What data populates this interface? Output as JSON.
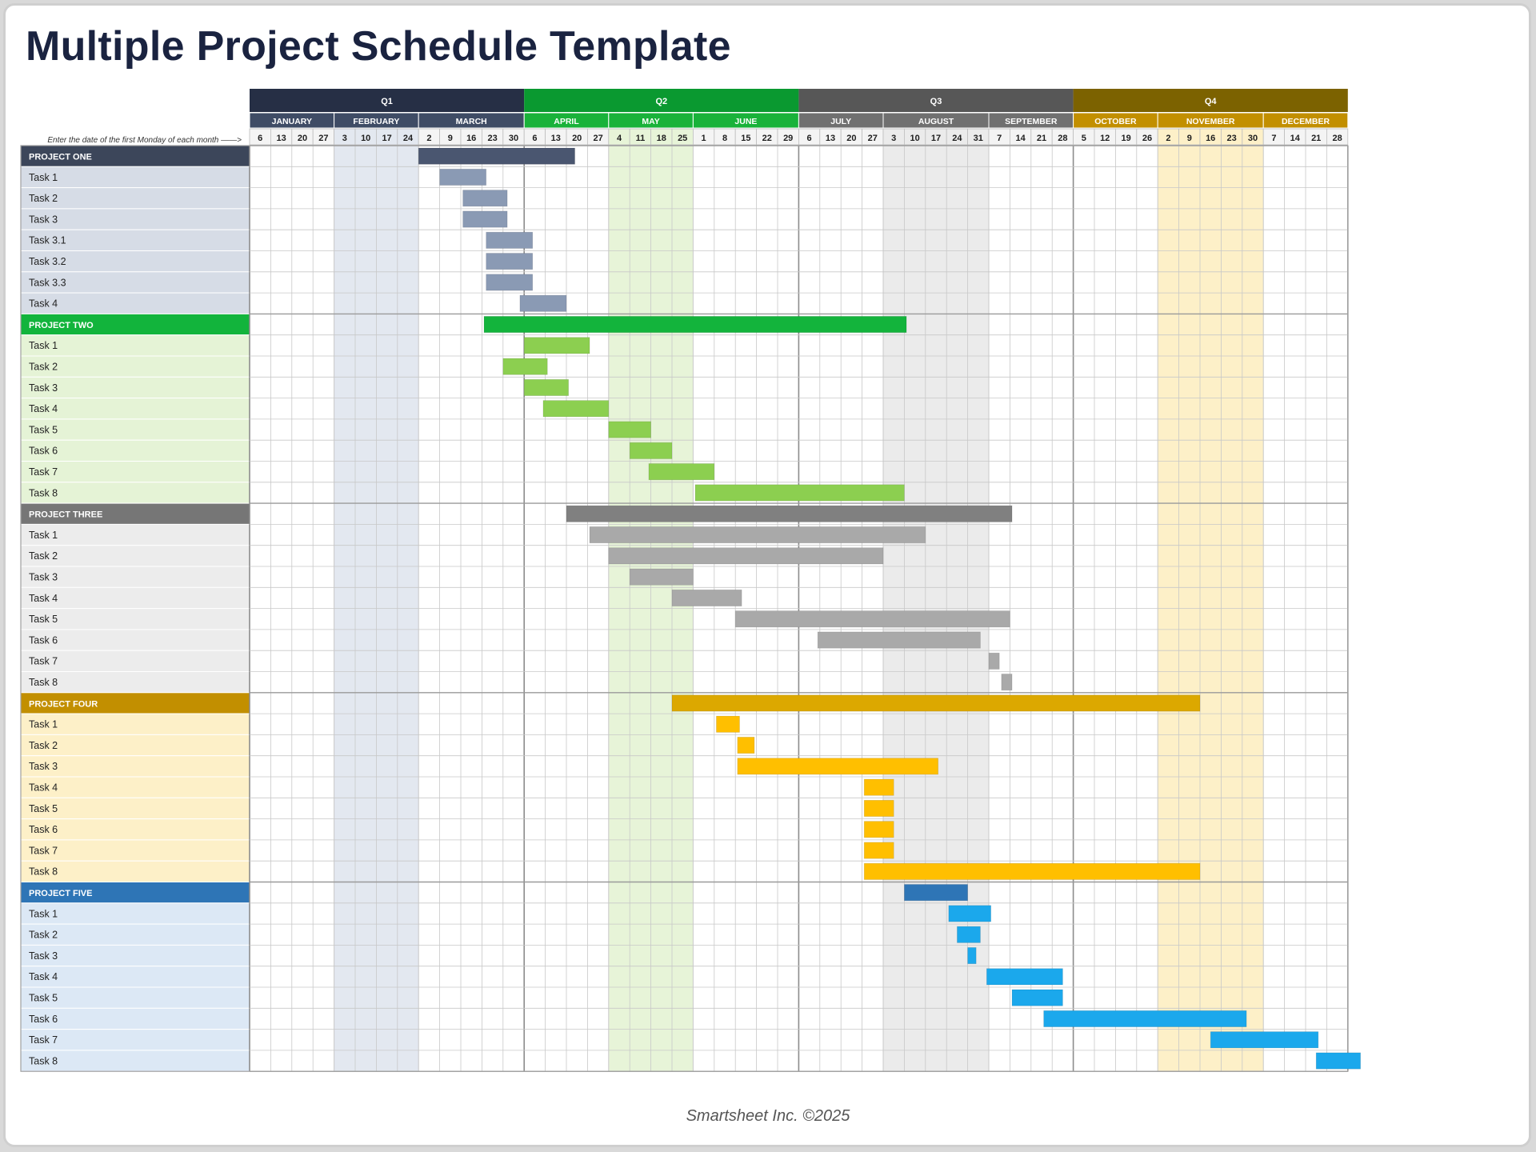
{
  "title": "Multiple Project Schedule Template",
  "instruction": "Enter the date of the first Monday of each month ——>",
  "footer": "Smartsheet Inc. ©2025",
  "quarters": [
    {
      "label": "Q1",
      "dark": "#262f45",
      "mid": "#3f4c65",
      "light": "#e3e8f0"
    },
    {
      "label": "Q2",
      "dark": "#0a9930",
      "mid": "#19b23a",
      "light": "#e7f4d8"
    },
    {
      "label": "Q3",
      "dark": "#575757",
      "mid": "#707070",
      "light": "#ebebeb"
    },
    {
      "label": "Q4",
      "dark": "#7c6200",
      "mid": "#c28f00",
      "light": "#fdf0c8"
    }
  ],
  "months": [
    {
      "name": "JANUARY",
      "weeks": [
        "6",
        "13",
        "20",
        "27"
      ]
    },
    {
      "name": "FEBRUARY",
      "weeks": [
        "3",
        "10",
        "17",
        "24"
      ]
    },
    {
      "name": "MARCH",
      "weeks": [
        "2",
        "9",
        "16",
        "23",
        "30"
      ]
    },
    {
      "name": "APRIL",
      "weeks": [
        "6",
        "13",
        "20",
        "27"
      ]
    },
    {
      "name": "MAY",
      "weeks": [
        "4",
        "11",
        "18",
        "25"
      ]
    },
    {
      "name": "JUNE",
      "weeks": [
        "1",
        "8",
        "15",
        "22",
        "29"
      ]
    },
    {
      "name": "JULY",
      "weeks": [
        "6",
        "13",
        "20",
        "27"
      ]
    },
    {
      "name": "AUGUST",
      "weeks": [
        "3",
        "10",
        "17",
        "24",
        "31"
      ]
    },
    {
      "name": "SEPTEMBER",
      "weeks": [
        "7",
        "14",
        "21",
        "28"
      ]
    },
    {
      "name": "OCTOBER",
      "weeks": [
        "5",
        "12",
        "19",
        "26"
      ]
    },
    {
      "name": "NOVEMBER",
      "weeks": [
        "2",
        "9",
        "16",
        "23",
        "30"
      ]
    },
    {
      "name": "DECEMBER",
      "weeks": [
        "7",
        "14",
        "21",
        "28"
      ]
    }
  ],
  "projects": [
    {
      "name": "PROJECT ONE",
      "header_color": "#3c465a",
      "label_bg": "#d6dce6",
      "bar_color": "#4a5670",
      "task_bar_color": "#8a9ab4",
      "summary_weeks": [
        8,
        15.4
      ],
      "tasks": [
        {
          "name": "Task 1",
          "weeks": [
            9,
            11.2
          ]
        },
        {
          "name": "Task 2",
          "weeks": [
            10.1,
            12.2
          ]
        },
        {
          "name": "Task 3",
          "weeks": [
            10.1,
            12.2
          ]
        },
        {
          "name": "Task 3.1",
          "weeks": [
            11.2,
            13.4
          ]
        },
        {
          "name": "Task 3.2",
          "weeks": [
            11.2,
            13.4
          ]
        },
        {
          "name": "Task 3.3",
          "weeks": [
            11.2,
            13.4
          ]
        },
        {
          "name": "Task 4",
          "weeks": [
            12.8,
            15
          ]
        }
      ]
    },
    {
      "name": "PROJECT TWO",
      "header_color": "#12b43c",
      "label_bg": "#e5f3d6",
      "bar_color": "#13b43c",
      "task_bar_color": "#8ccf50",
      "summary_weeks": [
        11.1,
        31.1
      ],
      "tasks": [
        {
          "name": "Task 1",
          "weeks": [
            13,
            16.1
          ]
        },
        {
          "name": "Task 2",
          "weeks": [
            12,
            14.1
          ]
        },
        {
          "name": "Task 3",
          "weeks": [
            13,
            15.1
          ]
        },
        {
          "name": "Task 4",
          "weeks": [
            13.9,
            17
          ]
        },
        {
          "name": "Task 5",
          "weeks": [
            17,
            19
          ]
        },
        {
          "name": "Task 6",
          "weeks": [
            18,
            20
          ]
        },
        {
          "name": "Task 7",
          "weeks": [
            18.9,
            22
          ]
        },
        {
          "name": "Task 8",
          "weeks": [
            21.1,
            31
          ]
        }
      ]
    },
    {
      "name": "PROJECT THREE",
      "header_color": "#767676",
      "label_bg": "#ececec",
      "bar_color": "#808080",
      "task_bar_color": "#a9a9a9",
      "summary_weeks": [
        15,
        36.1
      ],
      "tasks": [
        {
          "name": "Task 1",
          "weeks": [
            16.1,
            32
          ]
        },
        {
          "name": "Task 2",
          "weeks": [
            17,
            30
          ]
        },
        {
          "name": "Task 3",
          "weeks": [
            18,
            21
          ]
        },
        {
          "name": "Task 4",
          "weeks": [
            20,
            23.3
          ]
        },
        {
          "name": "Task 5",
          "weeks": [
            23,
            36
          ]
        },
        {
          "name": "Task 6",
          "weeks": [
            26.9,
            34.6
          ]
        },
        {
          "name": "Task 7",
          "weeks": [
            35,
            35.5
          ]
        },
        {
          "name": "Task 8",
          "weeks": [
            35.6,
            36.1
          ]
        }
      ]
    },
    {
      "name": "PROJECT FOUR",
      "header_color": "#c28f00",
      "label_bg": "#fdf0c8",
      "bar_color": "#dca800",
      "task_bar_color": "#ffbf00",
      "summary_weeks": [
        20,
        45
      ],
      "tasks": [
        {
          "name": "Task 1",
          "weeks": [
            22.1,
            23.2
          ]
        },
        {
          "name": "Task 2",
          "weeks": [
            23.1,
            23.9
          ]
        },
        {
          "name": "Task 3",
          "weeks": [
            23.1,
            32.6
          ]
        },
        {
          "name": "Task 4",
          "weeks": [
            29.1,
            30.5
          ]
        },
        {
          "name": "Task 5",
          "weeks": [
            29.1,
            30.5
          ]
        },
        {
          "name": "Task 6",
          "weeks": [
            29.1,
            30.5
          ]
        },
        {
          "name": "Task 7",
          "weeks": [
            29.1,
            30.5
          ]
        },
        {
          "name": "Task 8",
          "weeks": [
            29.1,
            45
          ]
        }
      ]
    },
    {
      "name": "PROJECT FIVE",
      "header_color": "#2e75b6",
      "label_bg": "#dce8f5",
      "bar_color": "#2e75b6",
      "task_bar_color": "#1ba8ec",
      "summary_weeks": [
        31,
        34
      ],
      "tasks": [
        {
          "name": "Task 1",
          "weeks": [
            33.1,
            35.1
          ]
        },
        {
          "name": "Task 2",
          "weeks": [
            33.5,
            34.6
          ]
        },
        {
          "name": "Task 3",
          "weeks": [
            34,
            34.4
          ]
        },
        {
          "name": "Task 4",
          "weeks": [
            34.9,
            38.5
          ]
        },
        {
          "name": "Task 5",
          "weeks": [
            36.1,
            38.5
          ]
        },
        {
          "name": "Task 6",
          "weeks": [
            37.6,
            47.2
          ]
        },
        {
          "name": "Task 7",
          "weeks": [
            45.5,
            50.6
          ]
        },
        {
          "name": "Task 8",
          "weeks": [
            50.5,
            52.6
          ]
        }
      ]
    }
  ]
}
